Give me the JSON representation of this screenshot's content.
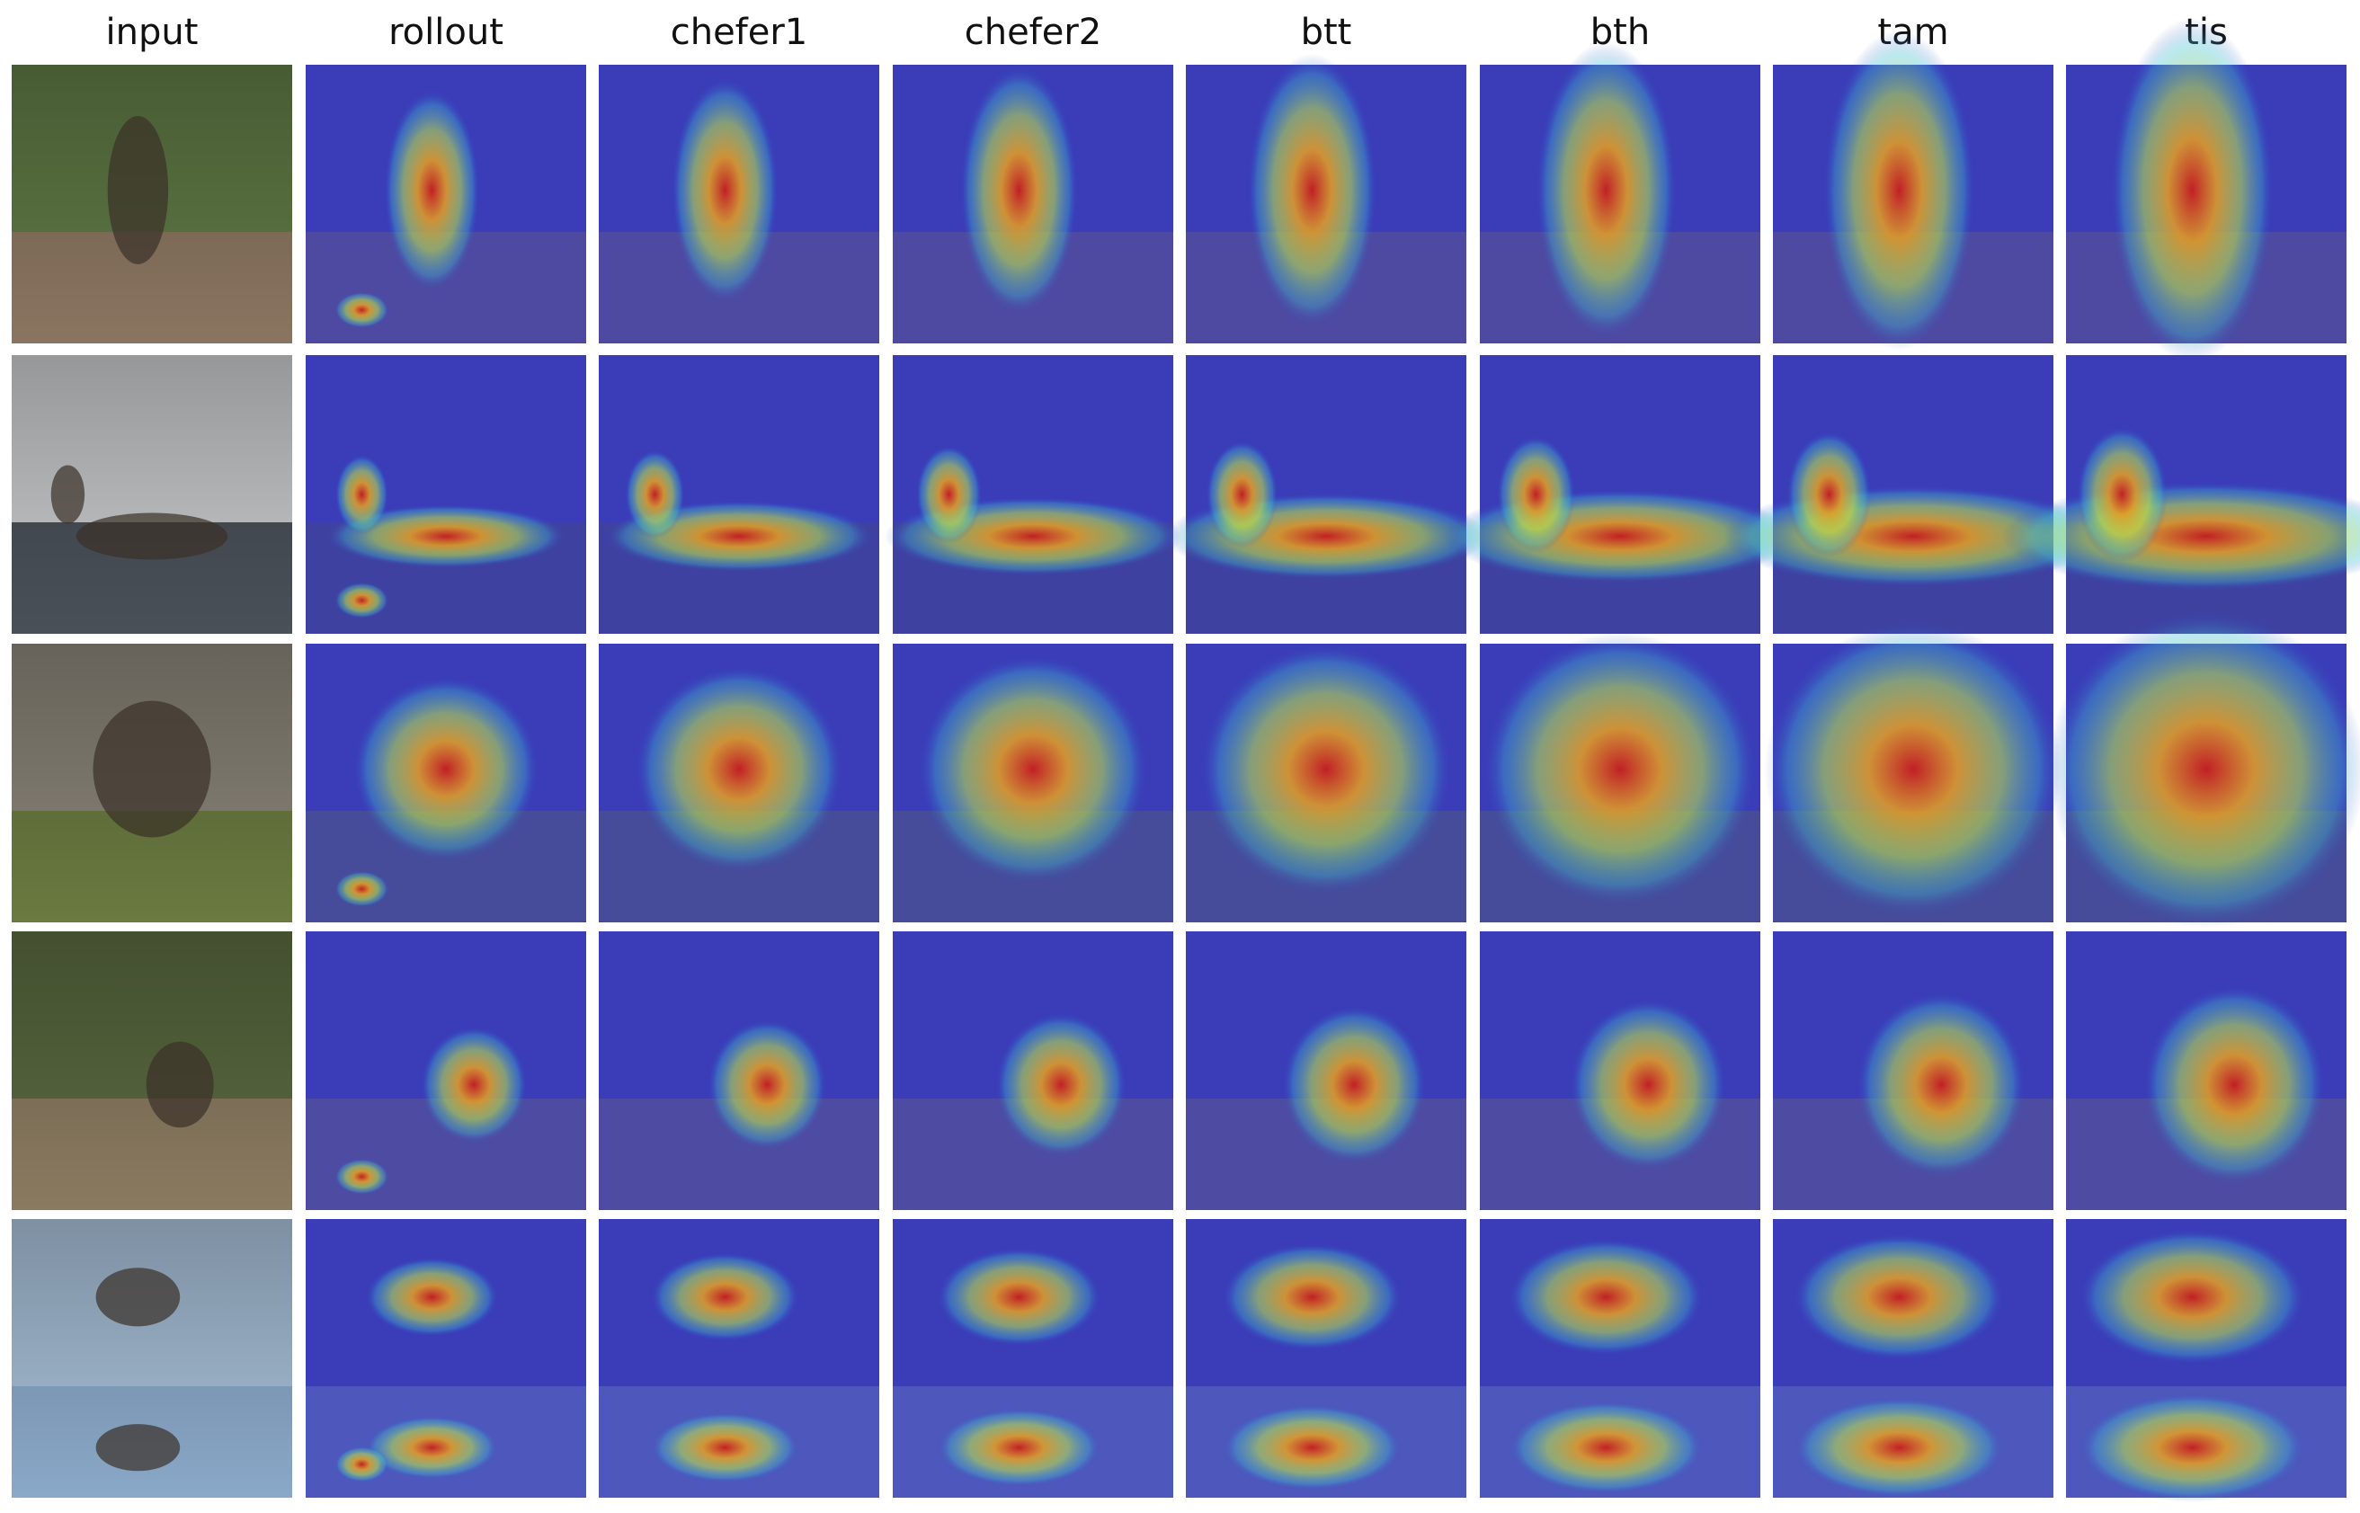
{
  "columns": [
    "input",
    "rollout",
    "chefer1",
    "chefer2",
    "btt",
    "bth",
    "tam",
    "tis"
  ]
}
